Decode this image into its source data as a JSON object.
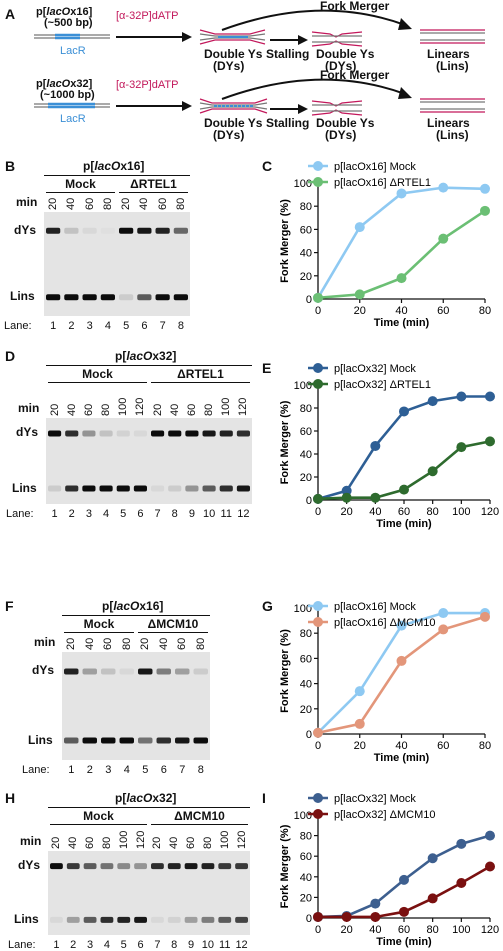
{
  "panelA": {
    "label": "A",
    "row1": {
      "plasmid_prefix": "p[",
      "plasmid_name": "lacO",
      "plasmid_suffix": "x16]",
      "size": "(~500 bp)",
      "lacr": "LacR",
      "dntp": "[α-32P]dATP",
      "dys": "Double Ys",
      "dys_abbr": "(DYs)",
      "stalling": "Stalling",
      "dys2": "Double Ys",
      "dys2_abbr": "(DYs)",
      "lins": "Linears",
      "lins_abbr": "(Lins)",
      "merger": "Fork Merger"
    },
    "row2": {
      "plasmid_prefix": "p[",
      "plasmid_name": "lacO",
      "plasmid_suffix": "x32]",
      "size": "(~1000 bp)",
      "lacr": "LacR",
      "dntp": "[α-32P]dATP",
      "dys": "Double Ys",
      "dys_abbr": "(DYs)",
      "stalling": "Stalling",
      "dys2": "Double Ys",
      "dys2_abbr": "(DYs)",
      "lins": "Linears",
      "lins_abbr": "(Lins)",
      "merger": "Fork Merger"
    }
  },
  "panelB": {
    "label": "B",
    "title_prefix": "p[",
    "title_name": "lacO",
    "title_suffix": "x16]",
    "group1": "Mock",
    "group2": "ΔRTEL1",
    "min_label": "min",
    "times": [
      "20",
      "40",
      "60",
      "80",
      "20",
      "40",
      "60",
      "80"
    ],
    "band1": "dYs",
    "band2": "Lins",
    "lane_label": "Lane:",
    "lanes": [
      "1",
      "2",
      "3",
      "4",
      "5",
      "6",
      "7",
      "8"
    ]
  },
  "panelD": {
    "label": "D",
    "title_prefix": "p[",
    "title_name": "lacO",
    "title_suffix": "x32]",
    "group1": "Mock",
    "group2": "ΔRTEL1",
    "min_label": "min",
    "times": [
      "20",
      "40",
      "60",
      "80",
      "100",
      "120",
      "20",
      "40",
      "60",
      "80",
      "100",
      "120"
    ],
    "band1": "dYs",
    "band2": "Lins",
    "lane_label": "Lane:",
    "lanes": [
      "1",
      "2",
      "3",
      "4",
      "5",
      "6",
      "7",
      "8",
      "9",
      "10",
      "11",
      "12"
    ]
  },
  "panelF": {
    "label": "F",
    "title_prefix": "p[",
    "title_name": "lacO",
    "title_suffix": "x16]",
    "group1": "Mock",
    "group2": "ΔMCM10",
    "min_label": "min",
    "times": [
      "20",
      "40",
      "60",
      "80",
      "20",
      "40",
      "60",
      "80"
    ],
    "band1": "dYs",
    "band2": "Lins",
    "lane_label": "Lane:",
    "lanes": [
      "1",
      "2",
      "3",
      "4",
      "5",
      "6",
      "7",
      "8"
    ]
  },
  "panelH": {
    "label": "H",
    "title_prefix": "p[",
    "title_name": "lacO",
    "title_suffix": "x32]",
    "group1": "Mock",
    "group2": "ΔMCM10",
    "min_label": "min",
    "times": [
      "20",
      "40",
      "60",
      "80",
      "100",
      "120",
      "20",
      "40",
      "60",
      "80",
      "100",
      "120"
    ],
    "band1": "dYs",
    "band2": "Lins",
    "lane_label": "Lane:",
    "lanes": [
      "1",
      "2",
      "3",
      "4",
      "5",
      "6",
      "7",
      "8",
      "9",
      "10",
      "11",
      "12"
    ]
  },
  "chart_data": [
    {
      "panel": "C",
      "type": "line",
      "xlabel": "Time (min)",
      "ylabel": "Fork Merger (%)",
      "xlim": [
        0,
        80
      ],
      "ylim": [
        0,
        100
      ],
      "xticks": [
        0,
        20,
        40,
        60,
        80
      ],
      "yticks": [
        0,
        20,
        40,
        60,
        80,
        100
      ],
      "series": [
        {
          "name": "p[lacOx16] Mock",
          "color": "#8ec9f2",
          "x": [
            0,
            20,
            40,
            60,
            80
          ],
          "y": [
            1,
            62,
            91,
            96,
            95
          ]
        },
        {
          "name": "p[lacOx16] ΔRTEL1",
          "color": "#6bbf74",
          "x": [
            0,
            20,
            40,
            60,
            80
          ],
          "y": [
            1,
            4,
            18,
            52,
            76
          ]
        }
      ]
    },
    {
      "panel": "E",
      "type": "line",
      "xlabel": "Time (min)",
      "ylabel": "Fork Merger (%)",
      "xlim": [
        0,
        120
      ],
      "ylim": [
        0,
        100
      ],
      "xticks": [
        0,
        20,
        40,
        60,
        80,
        100,
        120
      ],
      "yticks": [
        0,
        20,
        40,
        60,
        80,
        100
      ],
      "series": [
        {
          "name": "p[lacOx32] Mock",
          "color": "#2e5f95",
          "x": [
            0,
            20,
            40,
            60,
            80,
            100,
            120
          ],
          "y": [
            1,
            8,
            47,
            77,
            86,
            90,
            90
          ]
        },
        {
          "name": "p[lacOx32] ΔRTEL1",
          "color": "#2e6b2e",
          "x": [
            0,
            20,
            40,
            60,
            80,
            100,
            120
          ],
          "y": [
            1,
            2,
            2,
            9,
            25,
            46,
            51
          ]
        }
      ]
    },
    {
      "panel": "G",
      "type": "line",
      "xlabel": "Time (min)",
      "ylabel": "Fork Merger (%)",
      "xlim": [
        0,
        80
      ],
      "ylim": [
        0,
        100
      ],
      "xticks": [
        0,
        20,
        40,
        60,
        80
      ],
      "yticks": [
        0,
        20,
        40,
        60,
        80,
        100
      ],
      "series": [
        {
          "name": "p[lacOx16] Mock",
          "color": "#8ec9f2",
          "x": [
            0,
            20,
            40,
            60,
            80
          ],
          "y": [
            1,
            34,
            86,
            96,
            96
          ]
        },
        {
          "name": "p[lacOx16] ΔMCM10",
          "color": "#e3967a",
          "x": [
            0,
            20,
            40,
            60,
            80
          ],
          "y": [
            1,
            8,
            58,
            83,
            93
          ]
        }
      ]
    },
    {
      "panel": "I",
      "type": "line",
      "xlabel": "Time (min)",
      "ylabel": "Fork Merger (%)",
      "xlim": [
        0,
        120
      ],
      "ylim": [
        0,
        100
      ],
      "xticks": [
        0,
        20,
        40,
        60,
        80,
        100,
        120
      ],
      "yticks": [
        0,
        20,
        40,
        60,
        80,
        100
      ],
      "series": [
        {
          "name": "p[lacOx32] Mock",
          "color": "#3d5f8f",
          "x": [
            0,
            20,
            40,
            60,
            80,
            100,
            120
          ],
          "y": [
            1,
            2,
            14,
            37,
            58,
            72,
            80
          ]
        },
        {
          "name": "p[lacOx32] ΔMCM10",
          "color": "#7a1010",
          "x": [
            0,
            20,
            40,
            60,
            80,
            100,
            120
          ],
          "y": [
            1,
            1,
            1,
            6,
            19,
            34,
            50
          ]
        }
      ]
    }
  ],
  "gel_data": [
    {
      "panel": "B",
      "dys_intensity": [
        0.85,
        0.15,
        0.05,
        0.02,
        0.95,
        0.9,
        0.85,
        0.55
      ],
      "lins_intensity": [
        0.95,
        0.95,
        0.95,
        0.95,
        0.1,
        0.6,
        0.95,
        0.95
      ]
    },
    {
      "panel": "D",
      "dys_intensity": [
        0.95,
        0.8,
        0.35,
        0.15,
        0.08,
        0.05,
        0.95,
        0.95,
        0.95,
        0.9,
        0.85,
        0.8
      ],
      "lins_intensity": [
        0.1,
        0.8,
        0.95,
        0.95,
        0.95,
        0.95,
        0.05,
        0.1,
        0.35,
        0.6,
        0.8,
        0.9
      ]
    },
    {
      "panel": "F",
      "dys_intensity": [
        0.85,
        0.3,
        0.15,
        0.05,
        0.9,
        0.45,
        0.3,
        0.1
      ],
      "lins_intensity": [
        0.6,
        0.95,
        0.95,
        0.95,
        0.5,
        0.8,
        0.9,
        0.95
      ]
    },
    {
      "panel": "H",
      "dys_intensity": [
        0.95,
        0.75,
        0.6,
        0.5,
        0.4,
        0.35,
        0.8,
        0.85,
        0.9,
        0.85,
        0.75,
        0.75
      ],
      "lins_intensity": [
        0.05,
        0.3,
        0.6,
        0.8,
        0.85,
        0.9,
        0.05,
        0.08,
        0.3,
        0.45,
        0.6,
        0.7
      ]
    }
  ]
}
